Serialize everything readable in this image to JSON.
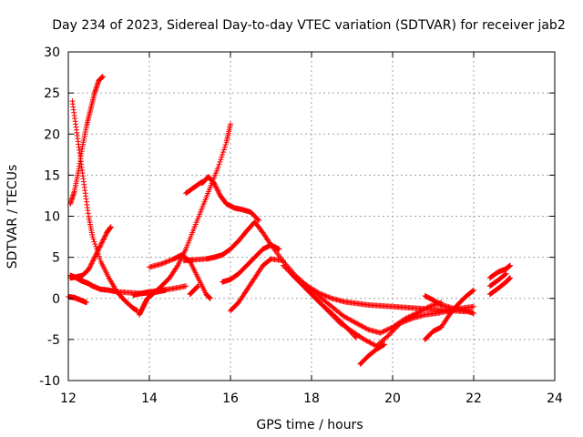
{
  "chart_data": {
    "type": "scatter",
    "title": "Day 234 of 2023, Sidereal Day-to-day VTEC variation (SDTVAR) for receiver jab2",
    "xlabel": "GPS time / hours",
    "ylabel": "SDTVAR / TECUs",
    "xlim": [
      12,
      24
    ],
    "ylim": [
      -10,
      30
    ],
    "xticks": [
      12,
      14,
      16,
      18,
      20,
      22,
      24
    ],
    "yticks": [
      -10,
      -5,
      0,
      5,
      10,
      15,
      20,
      25,
      30
    ],
    "xtick_labels": [
      "12",
      "14",
      "16",
      "18",
      "20",
      "22",
      "24"
    ],
    "ytick_labels": [
      "-10",
      "-5",
      "0",
      "5",
      "10",
      "15",
      "20",
      "25",
      "30"
    ],
    "grid": true,
    "marker": "+",
    "color": "#ff0000",
    "series": [
      {
        "name": "s1",
        "x": [
          12.1,
          12.2,
          12.3,
          12.4,
          12.5,
          12.6,
          12.8,
          13.0,
          13.2,
          13.4,
          13.6,
          13.7
        ],
        "y": [
          24,
          20.5,
          17,
          13.5,
          10,
          7.5,
          4.5,
          2.5,
          0.8,
          -0.3,
          -1.2,
          -1.5
        ]
      },
      {
        "name": "s2",
        "x": [
          12.05,
          12.15,
          12.25,
          12.35,
          12.45,
          12.55,
          12.65,
          12.75,
          12.85
        ],
        "y": [
          11.5,
          13,
          15.5,
          18.5,
          21,
          23,
          25,
          26.5,
          27
        ]
      },
      {
        "name": "s3",
        "x": [
          12.05,
          12.2,
          12.3,
          12.4,
          12.5,
          12.6,
          12.8,
          13.0,
          13.2,
          13.5,
          13.8,
          14.0,
          14.2,
          14.4
        ],
        "y": [
          2.8,
          2.5,
          2.2,
          2.0,
          1.8,
          1.5,
          1.1,
          1.0,
          0.8,
          0.7,
          0.6,
          0.7,
          0.8,
          1.0
        ]
      },
      {
        "name": "s4",
        "x": [
          12.05,
          12.2,
          12.35,
          12.5,
          12.65,
          12.8,
          12.95,
          13.05
        ],
        "y": [
          2.5,
          2.6,
          2.8,
          3.5,
          5.0,
          6.5,
          8.0,
          8.7
        ]
      },
      {
        "name": "s5",
        "x": [
          12.0,
          12.15,
          12.3,
          12.45
        ],
        "y": [
          0.2,
          0.1,
          -0.2,
          -0.5
        ]
      },
      {
        "name": "s6",
        "x": [
          13.75,
          13.85,
          13.95,
          14.1,
          14.3,
          14.5,
          14.7,
          14.9,
          15.1,
          15.3,
          15.5,
          15.7,
          15.9,
          16.0
        ],
        "y": [
          -2,
          -1,
          0,
          0.6,
          1.5,
          2.5,
          4,
          6,
          8.5,
          11,
          13.5,
          16,
          19,
          21.2
        ]
      },
      {
        "name": "s7",
        "x": [
          13.6,
          13.8,
          14.0,
          14.3,
          14.6,
          14.9
        ],
        "y": [
          0.4,
          0.6,
          0.8,
          1.0,
          1.2,
          1.5
        ]
      },
      {
        "name": "s8",
        "x": [
          14.0,
          14.3,
          14.6,
          14.8,
          15.0,
          15.2,
          15.4,
          15.5
        ],
        "y": [
          3.8,
          4.2,
          4.8,
          5.3,
          4.5,
          2.5,
          0.5,
          0
        ]
      },
      {
        "name": "s9",
        "x": [
          15.0,
          15.1,
          15.2
        ],
        "y": [
          0.5,
          1.0,
          1.5
        ]
      },
      {
        "name": "s10",
        "x": [
          14.85,
          15.1,
          15.4,
          15.6,
          15.8,
          16.0,
          16.2,
          16.4,
          16.6,
          16.8,
          17.0,
          17.3,
          17.6,
          17.9,
          18.2,
          18.5,
          18.8,
          19.1,
          19.4,
          19.7,
          20.0,
          20.3,
          20.6,
          20.9,
          21.2,
          21.5,
          21.8
        ],
        "y": [
          4.6,
          4.7,
          4.8,
          5.0,
          5.3,
          6.0,
          7.0,
          8.2,
          9.3,
          8.0,
          6.5,
          4.5,
          2.8,
          1.5,
          0.6,
          0.0,
          -0.4,
          -0.6,
          -0.8,
          -0.9,
          -1.0,
          -1.1,
          -1.2,
          -1.3,
          -1.4,
          -1.5,
          -1.6
        ]
      },
      {
        "name": "s11",
        "x": [
          15.3,
          15.45,
          15.6,
          15.75,
          15.9,
          16.1,
          16.3,
          16.5,
          16.7
        ],
        "y": [
          14,
          14.8,
          14.0,
          12.5,
          11.5,
          11.0,
          10.8,
          10.5,
          9.5
        ]
      },
      {
        "name": "s12",
        "x": [
          14.9,
          15.1,
          15.3
        ],
        "y": [
          12.8,
          13.5,
          14.2
        ]
      },
      {
        "name": "s13",
        "x": [
          15.8,
          16.0,
          16.2,
          16.4,
          16.6,
          16.8,
          17.0,
          17.2
        ],
        "y": [
          2.0,
          2.3,
          3.0,
          4.0,
          5.0,
          6.0,
          6.5,
          6.0
        ]
      },
      {
        "name": "s14",
        "x": [
          16.0,
          16.2,
          16.4,
          16.6,
          16.8,
          17.0,
          17.3
        ],
        "y": [
          -1.5,
          -0.5,
          1.0,
          2.5,
          4.0,
          4.8,
          4.6
        ]
      },
      {
        "name": "s15",
        "x": [
          17.3,
          17.6,
          17.9,
          18.2,
          18.5,
          18.8,
          19.1
        ],
        "y": [
          4.0,
          2.5,
          1.0,
          -0.5,
          -1.8,
          -3.2,
          -4.8
        ]
      },
      {
        "name": "s16",
        "x": [
          17.6,
          17.9,
          18.2,
          18.5,
          18.8,
          19.1,
          19.4,
          19.7,
          20.0,
          20.3,
          20.6,
          20.9,
          21.2
        ],
        "y": [
          2.5,
          1.5,
          0.2,
          -1.0,
          -2.2,
          -3.0,
          -3.8,
          -4.2,
          -3.5,
          -2.5,
          -1.8,
          -1.0,
          -0.5
        ]
      },
      {
        "name": "s17",
        "x": [
          17.5,
          17.8,
          18.1,
          18.4,
          18.7,
          19.0,
          19.3,
          19.6,
          19.9,
          20.2,
          20.5,
          20.8,
          21.1,
          21.4,
          21.7,
          22.0
        ],
        "y": [
          3.0,
          1.5,
          0.0,
          -1.5,
          -3.0,
          -4.0,
          -5.0,
          -5.8,
          -4.5,
          -3.0,
          -2.4,
          -2.0,
          -1.8,
          -1.5,
          -1.2,
          -1.0
        ]
      },
      {
        "name": "s18",
        "x": [
          19.2,
          19.4,
          19.6,
          19.8
        ],
        "y": [
          -8.0,
          -7.0,
          -6.2,
          -5.6
        ]
      },
      {
        "name": "s19",
        "x": [
          20.8,
          21.0,
          21.2,
          21.5,
          21.8,
          22.0
        ],
        "y": [
          0.3,
          -0.2,
          -0.8,
          -1.2,
          -1.5,
          -1.8
        ]
      },
      {
        "name": "s20",
        "x": [
          20.8,
          21.0,
          21.2,
          21.4,
          21.6,
          21.8,
          22.0
        ],
        "y": [
          -5.0,
          -4.0,
          -3.5,
          -2.0,
          -0.8,
          0.2,
          1.0
        ]
      },
      {
        "name": "s21",
        "x": [
          22.4,
          22.6,
          22.8,
          22.9
        ],
        "y": [
          2.5,
          3.2,
          3.6,
          4.0
        ]
      },
      {
        "name": "s22",
        "x": [
          22.4,
          22.6,
          22.8,
          22.9
        ],
        "y": [
          0.5,
          1.2,
          2.0,
          2.5
        ]
      },
      {
        "name": "s23",
        "x": [
          22.4,
          22.6,
          22.8
        ],
        "y": [
          1.5,
          2.2,
          3.0
        ]
      }
    ]
  }
}
